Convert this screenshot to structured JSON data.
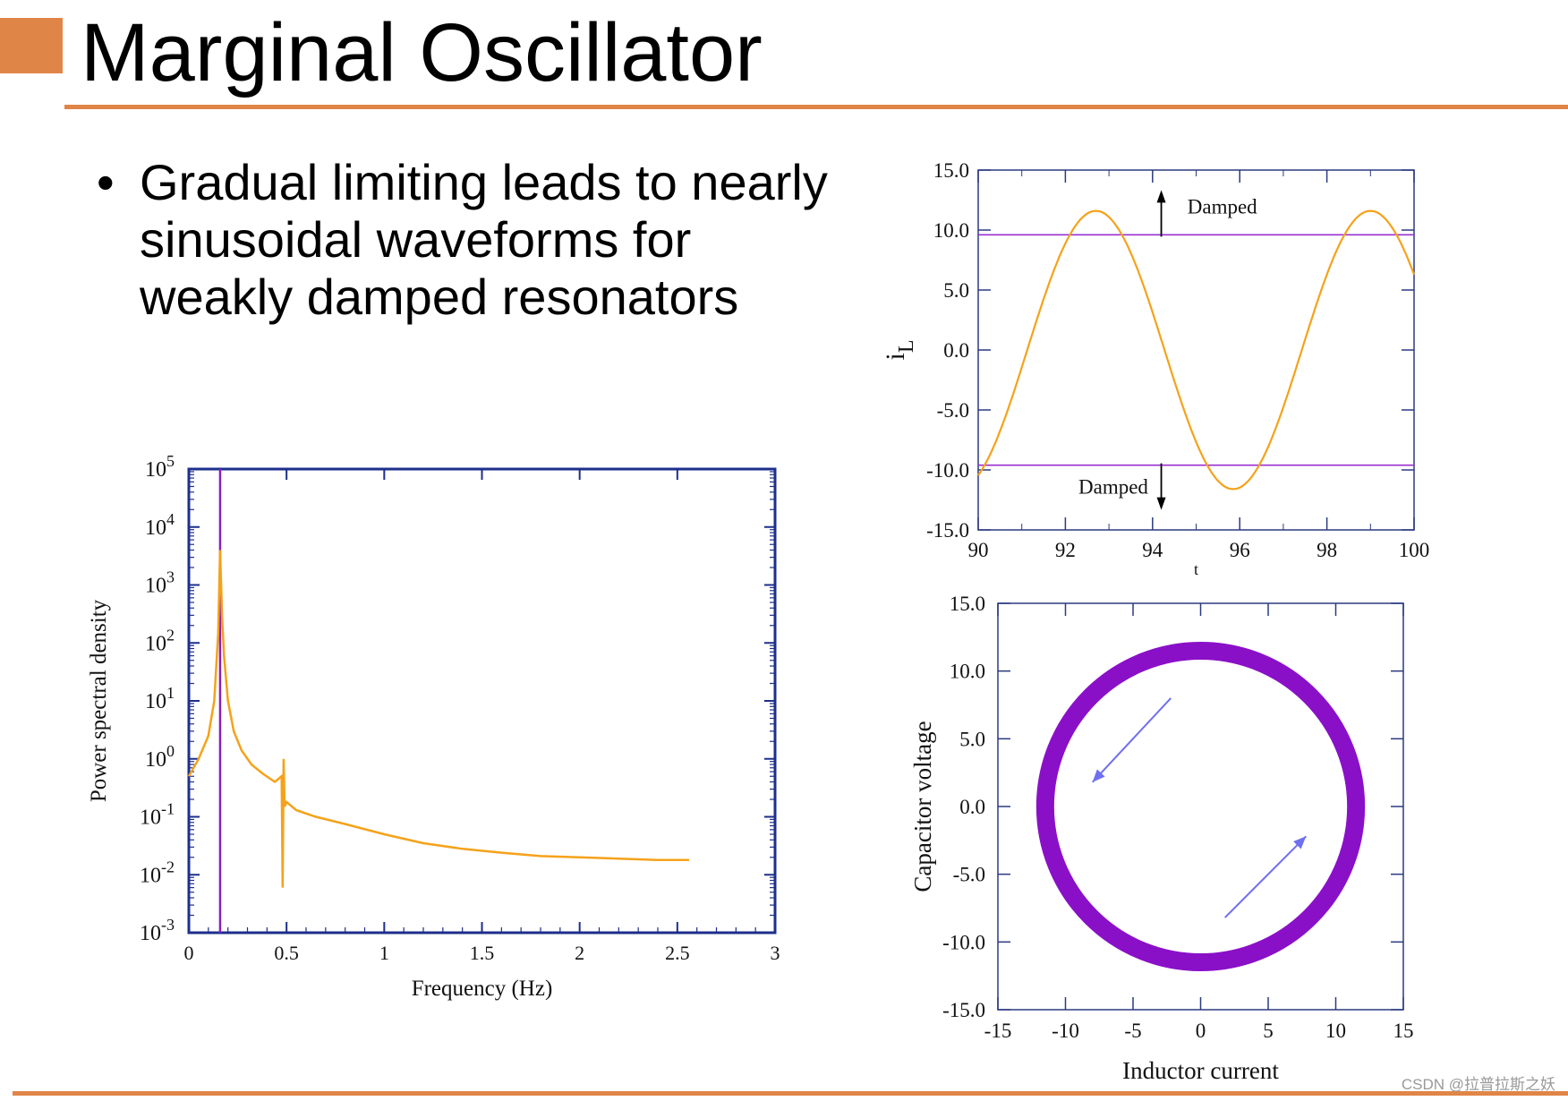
{
  "slide": {
    "title": "Marginal Oscillator",
    "bullet": "Gradual limiting leads to nearly sinusoidal waveforms for weakly damped resonators",
    "watermark": "CSDN @拉普拉斯之妖",
    "accent_color": "#e08548"
  },
  "chart_data": [
    {
      "type": "line",
      "name": "power-spectral-density",
      "xlabel": "Frequency (Hz)",
      "ylabel": "Power spectral density",
      "xlim": [
        0,
        3
      ],
      "ylim_log10": [
        -3,
        5
      ],
      "xticks": [
        "0",
        "0.5",
        "1",
        "1.5",
        "2",
        "2.5",
        "3"
      ],
      "yticks_exp": [
        "-3",
        "-2",
        "-1",
        "0",
        "1",
        "2",
        "3",
        "4",
        "5"
      ],
      "ytick_base": "10",
      "marker_line_x": 0.16,
      "marker_color": "#8a1fc0",
      "series_color": "#f5a21a",
      "series": [
        {
          "name": "PSD",
          "x": [
            0,
            0.05,
            0.1,
            0.13,
            0.15,
            0.16,
            0.17,
            0.18,
            0.2,
            0.23,
            0.27,
            0.32,
            0.38,
            0.44,
            0.475,
            0.48,
            0.485,
            0.49,
            0.5,
            0.55,
            0.65,
            0.8,
            1.0,
            1.2,
            1.4,
            1.6,
            1.8,
            2.0,
            2.2,
            2.4,
            2.56
          ],
          "y": [
            0.5,
            1.0,
            2.5,
            10,
            150,
            4000,
            300,
            60,
            10,
            3.0,
            1.4,
            0.8,
            0.55,
            0.4,
            0.5,
            0.006,
            1.0,
            0.15,
            0.18,
            0.13,
            0.1,
            0.075,
            0.05,
            0.035,
            0.028,
            0.024,
            0.021,
            0.02,
            0.019,
            0.018,
            0.018
          ]
        }
      ]
    },
    {
      "type": "line",
      "name": "inductor-current-vs-time",
      "xlabel": "t",
      "ylabel": "i",
      "ylabel_sub": "L",
      "xlim": [
        90,
        100
      ],
      "ylim": [
        -15,
        15
      ],
      "xticks": [
        "90",
        "92",
        "94",
        "96",
        "98",
        "100"
      ],
      "yticks": [
        "-15.0",
        "-10.0",
        "-5.0",
        "0.0",
        "5.0",
        "10.0",
        "15.0"
      ],
      "damped_level": 9.6,
      "annotation_top": "Damped",
      "annotation_bottom": "Damped",
      "series_color": "#f5a21a",
      "level_color": "#9b30d0",
      "series": [
        {
          "name": "iL",
          "amplitude": 11.6,
          "period": 6.3,
          "peak_t": 92.7
        }
      ]
    },
    {
      "type": "scatter",
      "name": "phase-portrait",
      "xlabel": "Inductor current",
      "ylabel": "Capacitor voltage",
      "xlim": [
        -15,
        15
      ],
      "ylim": [
        -15,
        15
      ],
      "xticks": [
        "-15",
        "-10",
        "-5",
        "0",
        "5",
        "10",
        "15"
      ],
      "yticks": [
        "-15.0",
        "-10.0",
        "-5.0",
        "0.0",
        "5.0",
        "10.0",
        "15.0"
      ],
      "orbit_radius": 11.5,
      "orbit_center": [
        0,
        0
      ],
      "orbit_color": "#8a10c8",
      "arrow_color": "#6f6ff0",
      "arrows": [
        {
          "from": [
            -2.2,
            8.0
          ],
          "to": [
            -8.0,
            1.8
          ]
        },
        {
          "from": [
            1.8,
            -8.2
          ],
          "to": [
            7.8,
            -2.2
          ]
        }
      ]
    }
  ]
}
